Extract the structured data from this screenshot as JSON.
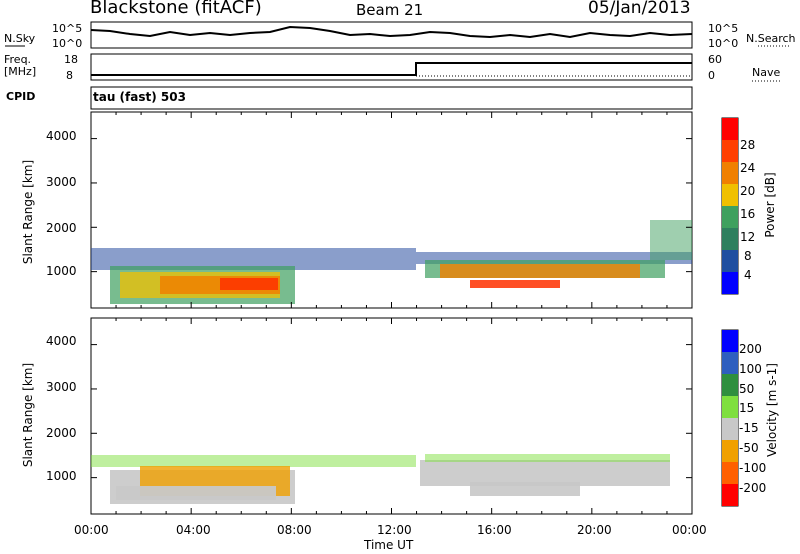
{
  "header": {
    "station": "Blackstone (fitACF)",
    "beam": "Beam 21",
    "date": "05/Jan/2013"
  },
  "noise_panel": {
    "left_label": "N.Sky",
    "left_ticks": [
      "10^5",
      "10^0"
    ],
    "right_label": "N.Search",
    "right_ticks": [
      "10^5",
      "10^0"
    ]
  },
  "freq_panel": {
    "left_label_line1": "Freq.",
    "left_label_line2": "[MHz]",
    "left_ticks": [
      "18",
      "8"
    ],
    "right_label": "Nave",
    "right_ticks": [
      "60",
      "0"
    ]
  },
  "cpid": {
    "label": "CPID",
    "value": "tau (fast) 503"
  },
  "chart_data": [
    {
      "type": "heatmap",
      "ylabel": "Slant Range [km]",
      "xlabel": "Time UT",
      "colorbar_label": "Power [dB]",
      "colorbar_ticks": [
        "4",
        "8",
        "12",
        "16",
        "20",
        "24",
        "28"
      ],
      "colorbar_range": [
        0,
        32
      ],
      "yticks": [
        "1000",
        "2000",
        "3000",
        "4000"
      ],
      "ylim": [
        180,
        4600
      ],
      "xlim": [
        0,
        24
      ],
      "colors": [
        "#0000ff",
        "#1f4fa0",
        "#2f7f5f",
        "#3fa05f",
        "#f0c000",
        "#f08000",
        "#ff4000",
        "#ff0000"
      ]
    },
    {
      "type": "heatmap",
      "ylabel": "Slant Range [km]",
      "xlabel": "Time UT",
      "colorbar_label": "Velocity [m s-1]",
      "colorbar_ticks": [
        "200",
        "100",
        "50",
        "15",
        "-15",
        "-50",
        "-100",
        "-200"
      ],
      "colorbar_range": [
        -250,
        250
      ],
      "yticks": [
        "1000",
        "2000",
        "3000",
        "4000"
      ],
      "ylim": [
        180,
        4600
      ],
      "xlim": [
        0,
        24
      ],
      "colors": [
        "#0000ff",
        "#2f5fbf",
        "#2f8f3f",
        "#7fdf3f",
        "#c8c8c8",
        "#f0a000",
        "#ff6000",
        "#ff0000"
      ]
    }
  ],
  "xaxis": {
    "ticks": [
      "00:00",
      "04:00",
      "08:00",
      "12:00",
      "16:00",
      "20:00",
      "00:00"
    ],
    "label": "Time UT"
  }
}
